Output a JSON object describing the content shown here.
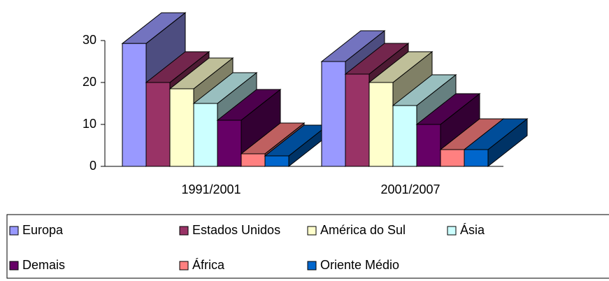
{
  "chart_data": {
    "type": "bar3d",
    "categories": [
      "1991/2001",
      "2001/2007"
    ],
    "series": [
      {
        "name": "Europa",
        "color": "#9999ff",
        "values": [
          29.3,
          25
        ]
      },
      {
        "name": "Estados Unidos",
        "color": "#993366",
        "values": [
          20,
          22
        ]
      },
      {
        "name": "América do Sul",
        "color": "#ffffcc",
        "values": [
          18.5,
          20
        ]
      },
      {
        "name": "Ásia",
        "color": "#ccffff",
        "values": [
          15,
          14.5
        ]
      },
      {
        "name": "Demais",
        "color": "#660066",
        "values": [
          11,
          10
        ]
      },
      {
        "name": "África",
        "color": "#ff8080",
        "values": [
          3,
          4
        ]
      },
      {
        "name": "Oriente Médio",
        "color": "#0066cc",
        "values": [
          2.5,
          4
        ]
      }
    ],
    "ylim": [
      0,
      30
    ],
    "yticks": [
      0,
      10,
      20,
      30
    ],
    "legend": "bottom"
  }
}
